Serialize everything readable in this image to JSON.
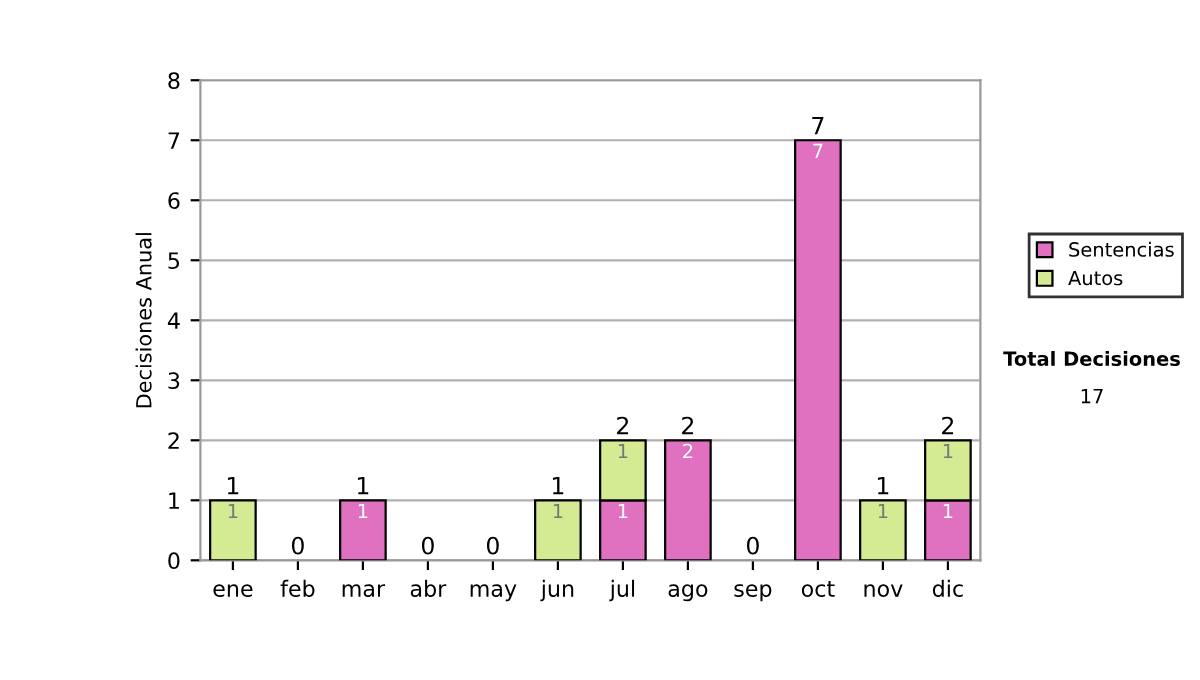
{
  "chart_data": {
    "type": "bar",
    "stacked": true,
    "ylabel": "Decisiones Anual",
    "categories": [
      "ene",
      "feb",
      "mar",
      "abr",
      "may",
      "jun",
      "jul",
      "ago",
      "sep",
      "oct",
      "nov",
      "dic"
    ],
    "series": [
      {
        "name": "Sentencias",
        "color": "#e070c0",
        "values": [
          0,
          0,
          1,
          0,
          0,
          0,
          1,
          2,
          0,
          7,
          0,
          1
        ],
        "value_labels": [
          null,
          null,
          "1",
          null,
          null,
          null,
          "1",
          "2",
          null,
          "7",
          null,
          "1"
        ]
      },
      {
        "name": "Autos",
        "color": "#d4eb94",
        "values": [
          1,
          0,
          0,
          0,
          0,
          1,
          1,
          0,
          0,
          0,
          1,
          1
        ],
        "value_labels": [
          "1",
          null,
          null,
          null,
          null,
          "1",
          "1",
          null,
          null,
          null,
          "1",
          "1"
        ]
      }
    ],
    "totals": [
      "1",
      "0",
      "1",
      "0",
      "0",
      "1",
      "2",
      "2",
      "0",
      "7",
      "1",
      "2"
    ],
    "ylim": [
      0,
      8
    ],
    "yticks": [
      0,
      1,
      2,
      3,
      4,
      5,
      6,
      7,
      8
    ],
    "grid": "y",
    "legend": "right",
    "annotations": [
      "Total Decisiones",
      "17"
    ]
  }
}
